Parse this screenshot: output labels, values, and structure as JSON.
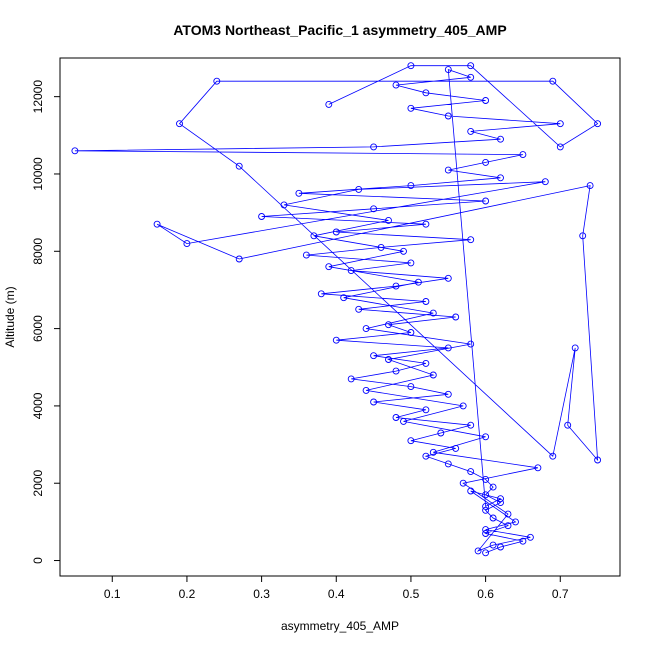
{
  "chart_data": {
    "type": "scatter",
    "title": "ATOM3 Northeast_Pacific_1 asymmetry_405_AMP",
    "xlabel": "asymmetry_405_AMP",
    "ylabel": "Altitude (m)",
    "x_ticks": [
      0.1,
      0.2,
      0.3,
      0.4,
      0.5,
      0.6,
      0.7
    ],
    "y_ticks": [
      0,
      2000,
      4000,
      6000,
      8000,
      10000,
      12000
    ],
    "xlim": [
      0.03,
      0.78
    ],
    "ylim": [
      -400,
      13000
    ],
    "grid": false,
    "legend": "none",
    "series_color": "#0000ff",
    "marker": "open-circle",
    "connected": true,
    "points": [
      [
        0.6,
        200
      ],
      [
        0.62,
        350
      ],
      [
        0.65,
        500
      ],
      [
        0.6,
        700
      ],
      [
        0.63,
        900
      ],
      [
        0.61,
        1100
      ],
      [
        0.6,
        1300
      ],
      [
        0.62,
        1500
      ],
      [
        0.6,
        1700
      ],
      [
        0.61,
        1900
      ],
      [
        0.6,
        2100
      ],
      [
        0.58,
        2300
      ],
      [
        0.55,
        2500
      ],
      [
        0.52,
        2700
      ],
      [
        0.56,
        2900
      ],
      [
        0.5,
        3100
      ],
      [
        0.54,
        3300
      ],
      [
        0.58,
        3500
      ],
      [
        0.48,
        3700
      ],
      [
        0.52,
        3900
      ],
      [
        0.45,
        4100
      ],
      [
        0.55,
        4300
      ],
      [
        0.5,
        4500
      ],
      [
        0.42,
        4700
      ],
      [
        0.48,
        4900
      ],
      [
        0.52,
        5100
      ],
      [
        0.45,
        5300
      ],
      [
        0.55,
        5500
      ],
      [
        0.4,
        5700
      ],
      [
        0.5,
        5900
      ],
      [
        0.47,
        6100
      ],
      [
        0.56,
        6300
      ],
      [
        0.43,
        6500
      ],
      [
        0.52,
        6700
      ],
      [
        0.38,
        6900
      ],
      [
        0.48,
        7100
      ],
      [
        0.55,
        7300
      ],
      [
        0.42,
        7500
      ],
      [
        0.5,
        7700
      ],
      [
        0.36,
        7900
      ],
      [
        0.46,
        8100
      ],
      [
        0.58,
        8300
      ],
      [
        0.4,
        8500
      ],
      [
        0.52,
        8700
      ],
      [
        0.3,
        8900
      ],
      [
        0.45,
        9100
      ],
      [
        0.6,
        9300
      ],
      [
        0.35,
        9500
      ],
      [
        0.5,
        9700
      ],
      [
        0.62,
        9900
      ],
      [
        0.55,
        10100
      ],
      [
        0.6,
        10300
      ],
      [
        0.65,
        10500
      ],
      [
        0.05,
        10600
      ],
      [
        0.45,
        10700
      ],
      [
        0.62,
        10900
      ],
      [
        0.58,
        11100
      ],
      [
        0.7,
        11300
      ],
      [
        0.55,
        11500
      ],
      [
        0.5,
        11700
      ],
      [
        0.6,
        11900
      ],
      [
        0.52,
        12100
      ],
      [
        0.48,
        12300
      ],
      [
        0.58,
        12500
      ],
      [
        0.55,
        12700
      ],
      [
        0.6,
        1400
      ],
      [
        0.62,
        1600
      ],
      [
        0.58,
        1800
      ],
      [
        0.64,
        1000
      ],
      [
        0.6,
        800
      ],
      [
        0.66,
        600
      ],
      [
        0.61,
        400
      ],
      [
        0.59,
        250
      ],
      [
        0.63,
        1200
      ],
      [
        0.57,
        2000
      ],
      [
        0.67,
        2400
      ],
      [
        0.53,
        2800
      ],
      [
        0.6,
        3200
      ],
      [
        0.49,
        3600
      ],
      [
        0.57,
        4000
      ],
      [
        0.44,
        4400
      ],
      [
        0.53,
        4800
      ],
      [
        0.47,
        5200
      ],
      [
        0.58,
        5600
      ],
      [
        0.44,
        6000
      ],
      [
        0.53,
        6400
      ],
      [
        0.41,
        6800
      ],
      [
        0.51,
        7200
      ],
      [
        0.39,
        7600
      ],
      [
        0.49,
        8000
      ],
      [
        0.37,
        8400
      ],
      [
        0.47,
        8800
      ],
      [
        0.33,
        9200
      ],
      [
        0.43,
        9600
      ],
      [
        0.68,
        9800
      ],
      [
        0.2,
        8200
      ],
      [
        0.16,
        8700
      ],
      [
        0.27,
        7800
      ],
      [
        0.74,
        9700
      ],
      [
        0.73,
        8400
      ],
      [
        0.75,
        2600
      ],
      [
        0.71,
        3500
      ],
      [
        0.72,
        5500
      ],
      [
        0.69,
        2700
      ],
      [
        0.27,
        10200
      ],
      [
        0.19,
        11300
      ],
      [
        0.24,
        12400
      ],
      [
        0.69,
        12400
      ],
      [
        0.75,
        11300
      ],
      [
        0.7,
        10700
      ],
      [
        0.58,
        12800
      ],
      [
        0.5,
        12800
      ],
      [
        0.39,
        11800
      ]
    ]
  }
}
